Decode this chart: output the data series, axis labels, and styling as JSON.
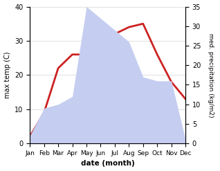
{
  "months": [
    "Jan",
    "Feb",
    "Mar",
    "Apr",
    "May",
    "Jun",
    "Jul",
    "Aug",
    "Sep",
    "Oct",
    "Nov",
    "Dec"
  ],
  "temp": [
    2,
    9,
    22,
    26,
    26,
    30,
    32,
    34,
    35,
    26,
    18,
    13
  ],
  "precip": [
    2,
    9,
    10,
    12,
    35,
    32,
    29,
    26,
    17,
    16,
    16,
    1
  ],
  "temp_color": "#cc2222",
  "precip_color_fill": "#c5cef0",
  "temp_ylim": [
    0,
    40
  ],
  "precip_ylim": [
    0,
    35
  ],
  "temp_yticks": [
    0,
    10,
    20,
    30,
    40
  ],
  "precip_yticks": [
    0,
    5,
    10,
    15,
    20,
    25,
    30,
    35
  ],
  "ylabel_left": "max temp (C)",
  "ylabel_right": "med. precipitation (kg/m2)",
  "xlabel": "date (month)",
  "figsize": [
    3.18,
    2.47
  ],
  "dpi": 100
}
